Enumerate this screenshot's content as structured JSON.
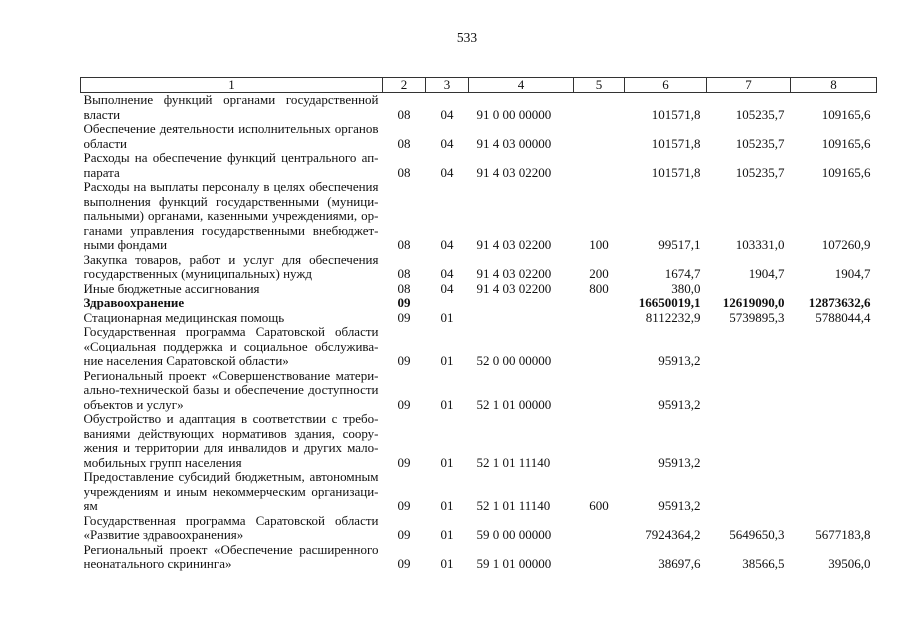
{
  "page_number": "533",
  "columns": [
    "1",
    "2",
    "3",
    "4",
    "5",
    "6",
    "7",
    "8"
  ],
  "rows": [
    {
      "lines": [
        "Выполнение функций органами государственной",
        "власти"
      ],
      "c2": "08",
      "c3": "04",
      "c4": "91 0 00 00000",
      "c5": "",
      "c6": "101571,8",
      "c7": "105235,7",
      "c8": "109165,6"
    },
    {
      "lines": [
        "Обеспечение деятельности исполнительных органов",
        "области"
      ],
      "c2": "08",
      "c3": "04",
      "c4": "91 4 03 00000",
      "c5": "",
      "c6": "101571,8",
      "c7": "105235,7",
      "c8": "109165,6"
    },
    {
      "lines": [
        "Расходы на обеспечение функций центрального ап-",
        "парата"
      ],
      "c2": "08",
      "c3": "04",
      "c4": "91 4 03 02200",
      "c5": "",
      "c6": "101571,8",
      "c7": "105235,7",
      "c8": "109165,6"
    },
    {
      "lines": [
        "Расходы на выплаты персоналу в целях обеспечения",
        "выполнения функций государственными (муници-",
        "пальными) органами, казенными учреждениями, ор-",
        "ганами управления государственными внебюджет-",
        "ными фондами"
      ],
      "c2": "08",
      "c3": "04",
      "c4": "91 4 03 02200",
      "c5": "100",
      "c6": "99517,1",
      "c7": "103331,0",
      "c8": "107260,9"
    },
    {
      "lines": [
        "Закупка товаров, работ и услуг для обеспечения",
        "государственных (муниципальных) нужд"
      ],
      "c2": "08",
      "c3": "04",
      "c4": "91 4 03 02200",
      "c5": "200",
      "c6": "1674,7",
      "c7": "1904,7",
      "c8": "1904,7"
    },
    {
      "lines": [
        "Иные бюджетные ассигнования"
      ],
      "c2": "08",
      "c3": "04",
      "c4": "91 4 03 02200",
      "c5": "800",
      "c6": "380,0",
      "c7": "",
      "c8": ""
    },
    {
      "lines": [
        "Здравоохранение"
      ],
      "bold": true,
      "c2": "09",
      "c3": "",
      "c4": "",
      "c5": "",
      "c6": "16650019,1",
      "c7": "12619090,0",
      "c8": "12873632,6"
    },
    {
      "lines": [
        "Стационарная медицинская помощь"
      ],
      "c2": "09",
      "c3": "01",
      "c4": "",
      "c5": "",
      "c6": "8112232,9",
      "c7": "5739895,3",
      "c8": "5788044,4"
    },
    {
      "lines": [
        "Государственная программа Саратовской области",
        "«Социальная поддержка и социальное обслужива-",
        "ние населения Саратовской области»"
      ],
      "c2": "09",
      "c3": "01",
      "c4": "52 0 00 00000",
      "c5": "",
      "c6": "95913,2",
      "c7": "",
      "c8": ""
    },
    {
      "lines": [
        "Региональный проект «Совершенствование матери-",
        "ально-технической базы и обеспечение доступности",
        "объектов и услуг»"
      ],
      "c2": "09",
      "c3": "01",
      "c4": "52 1 01 00000",
      "c5": "",
      "c6": "95913,2",
      "c7": "",
      "c8": ""
    },
    {
      "lines": [
        "Обустройство и адаптация в соответствии с требо-",
        "ваниями действующих нормативов здания, соору-",
        "жения и территории для инвалидов и других мало-",
        "мобильных групп населения"
      ],
      "c2": "09",
      "c3": "01",
      "c4": "52 1 01 11140",
      "c5": "",
      "c6": "95913,2",
      "c7": "",
      "c8": ""
    },
    {
      "lines": [
        "Предоставление субсидий бюджетным, автономным",
        "учреждениям и иным некоммерческим организаци-",
        "ям"
      ],
      "c2": "09",
      "c3": "01",
      "c4": "52 1 01 11140",
      "c5": "600",
      "c6": "95913,2",
      "c7": "",
      "c8": ""
    },
    {
      "lines": [
        "Государственная программа Саратовской области",
        "«Развитие здравоохранения»"
      ],
      "c2": "09",
      "c3": "01",
      "c4": "59 0 00 00000",
      "c5": "",
      "c6": "7924364,2",
      "c7": "5649650,3",
      "c8": "5677183,8"
    },
    {
      "lines": [
        "Региональный проект «Обеспечение расширенного",
        "неонатального скрининга»"
      ],
      "c2": "09",
      "c3": "01",
      "c4": "59 1 01 00000",
      "c5": "",
      "c6": "38697,6",
      "c7": "38566,5",
      "c8": "39506,0"
    }
  ]
}
